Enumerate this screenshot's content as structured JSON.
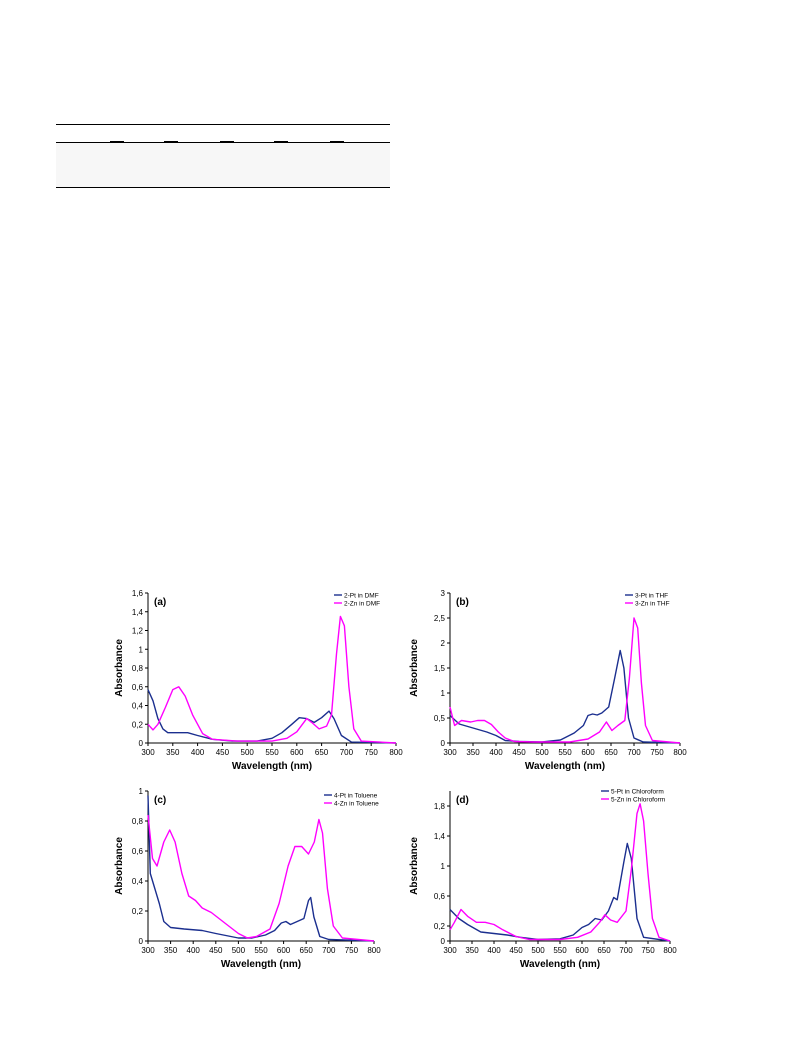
{
  "chart_data": [
    {
      "type": "line",
      "panel_label": "(a)",
      "xlabel": "Wavelength (nm)",
      "ylabel": "Absorbance",
      "xlim": [
        300,
        800
      ],
      "ylim": [
        0,
        1.6
      ],
      "xticks": [
        300,
        350,
        400,
        450,
        500,
        550,
        600,
        650,
        700,
        750,
        800
      ],
      "yticks": [
        "0",
        "0,2",
        "0,4",
        "0,6",
        "0,8",
        "1",
        "1,2",
        "1,4",
        "1,6"
      ],
      "ytick_values": [
        0,
        0.2,
        0.4,
        0.6,
        0.8,
        1.0,
        1.2,
        1.4,
        1.6
      ],
      "legend_position": "top-right",
      "series": [
        {
          "name": "2-Pt in DMF",
          "color": "#1b2f8f",
          "points": [
            [
              300,
              0.57
            ],
            [
              310,
              0.45
            ],
            [
              320,
              0.26
            ],
            [
              330,
              0.15
            ],
            [
              340,
              0.11
            ],
            [
              360,
              0.11
            ],
            [
              380,
              0.11
            ],
            [
              400,
              0.08
            ],
            [
              430,
              0.04
            ],
            [
              470,
              0.02
            ],
            [
              520,
              0.02
            ],
            [
              550,
              0.05
            ],
            [
              570,
              0.11
            ],
            [
              590,
              0.2
            ],
            [
              605,
              0.27
            ],
            [
              620,
              0.26
            ],
            [
              635,
              0.22
            ],
            [
              650,
              0.27
            ],
            [
              665,
              0.34
            ],
            [
              675,
              0.26
            ],
            [
              690,
              0.08
            ],
            [
              710,
              0.01
            ],
            [
              800,
              0
            ]
          ]
        },
        {
          "name": "2-Zn in DMF",
          "color": "#ff00ff",
          "points": [
            [
              300,
              0.2
            ],
            [
              310,
              0.14
            ],
            [
              320,
              0.2
            ],
            [
              335,
              0.38
            ],
            [
              350,
              0.57
            ],
            [
              362,
              0.6
            ],
            [
              375,
              0.5
            ],
            [
              390,
              0.3
            ],
            [
              410,
              0.1
            ],
            [
              430,
              0.04
            ],
            [
              480,
              0.02
            ],
            [
              550,
              0.02
            ],
            [
              580,
              0.05
            ],
            [
              600,
              0.12
            ],
            [
              620,
              0.26
            ],
            [
              630,
              0.22
            ],
            [
              645,
              0.15
            ],
            [
              660,
              0.18
            ],
            [
              670,
              0.3
            ],
            [
              680,
              0.95
            ],
            [
              688,
              1.35
            ],
            [
              696,
              1.25
            ],
            [
              705,
              0.6
            ],
            [
              715,
              0.15
            ],
            [
              730,
              0.02
            ],
            [
              800,
              0
            ]
          ]
        }
      ]
    },
    {
      "type": "line",
      "panel_label": "(b)",
      "xlabel": "Wavelength (nm)",
      "ylabel": "Absorbance",
      "xlim": [
        300,
        800
      ],
      "ylim": [
        0,
        3
      ],
      "xticks": [
        300,
        350,
        400,
        450,
        500,
        550,
        600,
        650,
        700,
        750,
        800
      ],
      "yticks": [
        "0",
        "0,5",
        "1",
        "1,5",
        "2",
        "2,5",
        "3"
      ],
      "ytick_values": [
        0,
        0.5,
        1.0,
        1.5,
        2.0,
        2.5,
        3.0
      ],
      "legend_position": "top-right",
      "series": [
        {
          "name": "3-Pt in THF",
          "color": "#1b2f8f",
          "points": [
            [
              300,
              0.55
            ],
            [
              320,
              0.38
            ],
            [
              350,
              0.3
            ],
            [
              380,
              0.22
            ],
            [
              400,
              0.15
            ],
            [
              420,
              0.05
            ],
            [
              450,
              0.03
            ],
            [
              500,
              0.02
            ],
            [
              540,
              0.06
            ],
            [
              570,
              0.2
            ],
            [
              590,
              0.35
            ],
            [
              600,
              0.55
            ],
            [
              610,
              0.58
            ],
            [
              620,
              0.56
            ],
            [
              630,
              0.6
            ],
            [
              645,
              0.72
            ],
            [
              658,
              1.3
            ],
            [
              670,
              1.85
            ],
            [
              678,
              1.5
            ],
            [
              688,
              0.5
            ],
            [
              700,
              0.1
            ],
            [
              720,
              0.02
            ],
            [
              800,
              0
            ]
          ]
        },
        {
          "name": "3-Zn in THF",
          "color": "#ff00ff",
          "points": [
            [
              300,
              0.72
            ],
            [
              310,
              0.35
            ],
            [
              325,
              0.45
            ],
            [
              345,
              0.42
            ],
            [
              360,
              0.45
            ],
            [
              375,
              0.45
            ],
            [
              390,
              0.37
            ],
            [
              405,
              0.22
            ],
            [
              420,
              0.1
            ],
            [
              440,
              0.03
            ],
            [
              480,
              0.02
            ],
            [
              560,
              0.02
            ],
            [
              600,
              0.08
            ],
            [
              625,
              0.22
            ],
            [
              640,
              0.42
            ],
            [
              652,
              0.25
            ],
            [
              665,
              0.35
            ],
            [
              680,
              0.45
            ],
            [
              690,
              1.3
            ],
            [
              700,
              2.5
            ],
            [
              708,
              2.3
            ],
            [
              716,
              1.2
            ],
            [
              725,
              0.35
            ],
            [
              740,
              0.05
            ],
            [
              800,
              0
            ]
          ]
        }
      ]
    },
    {
      "type": "line",
      "panel_label": "(c)",
      "xlabel": "Wavelength (nm)",
      "ylabel": "Absorbance",
      "xlim": [
        300,
        800
      ],
      "ylim": [
        0,
        1
      ],
      "xticks": [
        300,
        350,
        400,
        450,
        500,
        550,
        600,
        650,
        700,
        750,
        800
      ],
      "yticks": [
        "0",
        "0,2",
        "0,4",
        "0,6",
        "0,8",
        "1"
      ],
      "ytick_values": [
        0,
        0.2,
        0.4,
        0.6,
        0.8,
        1.0
      ],
      "legend_position": "top-right",
      "series": [
        {
          "name": "4-Pt in Toluene",
          "color": "#1b2f8f",
          "points": [
            [
              300,
              0.97
            ],
            [
              305,
              0.45
            ],
            [
              315,
              0.35
            ],
            [
              325,
              0.25
            ],
            [
              335,
              0.13
            ],
            [
              350,
              0.09
            ],
            [
              380,
              0.08
            ],
            [
              420,
              0.07
            ],
            [
              450,
              0.05
            ],
            [
              500,
              0.02
            ],
            [
              530,
              0.02
            ],
            [
              560,
              0.04
            ],
            [
              580,
              0.07
            ],
            [
              595,
              0.12
            ],
            [
              605,
              0.13
            ],
            [
              615,
              0.11
            ],
            [
              630,
              0.13
            ],
            [
              645,
              0.15
            ],
            [
              655,
              0.27
            ],
            [
              660,
              0.29
            ],
            [
              667,
              0.16
            ],
            [
              680,
              0.03
            ],
            [
              700,
              0.01
            ],
            [
              800,
              0
            ]
          ]
        },
        {
          "name": "4-Zn in Toluene",
          "color": "#ff00ff",
          "points": [
            [
              300,
              0.84
            ],
            [
              310,
              0.55
            ],
            [
              320,
              0.5
            ],
            [
              335,
              0.66
            ],
            [
              348,
              0.74
            ],
            [
              360,
              0.66
            ],
            [
              375,
              0.45
            ],
            [
              390,
              0.3
            ],
            [
              405,
              0.27
            ],
            [
              420,
              0.22
            ],
            [
              440,
              0.19
            ],
            [
              470,
              0.12
            ],
            [
              500,
              0.05
            ],
            [
              520,
              0.02
            ],
            [
              540,
              0.03
            ],
            [
              570,
              0.08
            ],
            [
              590,
              0.25
            ],
            [
              610,
              0.5
            ],
            [
              625,
              0.63
            ],
            [
              640,
              0.63
            ],
            [
              655,
              0.58
            ],
            [
              668,
              0.66
            ],
            [
              678,
              0.81
            ],
            [
              686,
              0.72
            ],
            [
              697,
              0.35
            ],
            [
              710,
              0.1
            ],
            [
              730,
              0.02
            ],
            [
              800,
              0
            ]
          ]
        }
      ]
    },
    {
      "type": "line",
      "panel_label": "(d)",
      "xlabel": "Wavelength (nm)",
      "ylabel": "Absorbance",
      "xlim": [
        300,
        800
      ],
      "ylim": [
        0,
        2
      ],
      "xticks": [
        300,
        350,
        400,
        450,
        500,
        550,
        600,
        650,
        700,
        750,
        800
      ],
      "yticks": [
        "0",
        "0,2",
        "0,6",
        "1",
        "1,4",
        "1,8"
      ],
      "ytick_values": [
        0,
        0.2,
        0.6,
        1.0,
        1.4,
        1.8
      ],
      "legend_position": "top-right",
      "series": [
        {
          "name": "5-Pt in Chloroform",
          "color": "#1b2f8f",
          "points": [
            [
              300,
              0.42
            ],
            [
              320,
              0.3
            ],
            [
              340,
              0.22
            ],
            [
              370,
              0.12
            ],
            [
              400,
              0.1
            ],
            [
              430,
              0.08
            ],
            [
              460,
              0.05
            ],
            [
              500,
              0.02
            ],
            [
              550,
              0.03
            ],
            [
              580,
              0.08
            ],
            [
              600,
              0.18
            ],
            [
              615,
              0.22
            ],
            [
              630,
              0.3
            ],
            [
              645,
              0.28
            ],
            [
              660,
              0.4
            ],
            [
              672,
              0.58
            ],
            [
              680,
              0.55
            ],
            [
              695,
              1.05
            ],
            [
              703,
              1.3
            ],
            [
              712,
              1.1
            ],
            [
              725,
              0.3
            ],
            [
              740,
              0.05
            ],
            [
              800,
              0
            ]
          ]
        },
        {
          "name": "5-Zn in Chloroform",
          "color": "#ff00ff",
          "points": [
            [
              300,
              0.15
            ],
            [
              310,
              0.25
            ],
            [
              325,
              0.42
            ],
            [
              340,
              0.33
            ],
            [
              360,
              0.25
            ],
            [
              380,
              0.25
            ],
            [
              400,
              0.22
            ],
            [
              420,
              0.15
            ],
            [
              450,
              0.06
            ],
            [
              480,
              0.02
            ],
            [
              550,
              0.02
            ],
            [
              590,
              0.05
            ],
            [
              620,
              0.12
            ],
            [
              640,
              0.25
            ],
            [
              652,
              0.35
            ],
            [
              665,
              0.28
            ],
            [
              680,
              0.25
            ],
            [
              700,
              0.4
            ],
            [
              712,
              0.95
            ],
            [
              725,
              1.7
            ],
            [
              732,
              1.83
            ],
            [
              740,
              1.6
            ],
            [
              750,
              0.9
            ],
            [
              760,
              0.3
            ],
            [
              775,
              0.05
            ],
            [
              800,
              0
            ]
          ]
        }
      ]
    }
  ]
}
